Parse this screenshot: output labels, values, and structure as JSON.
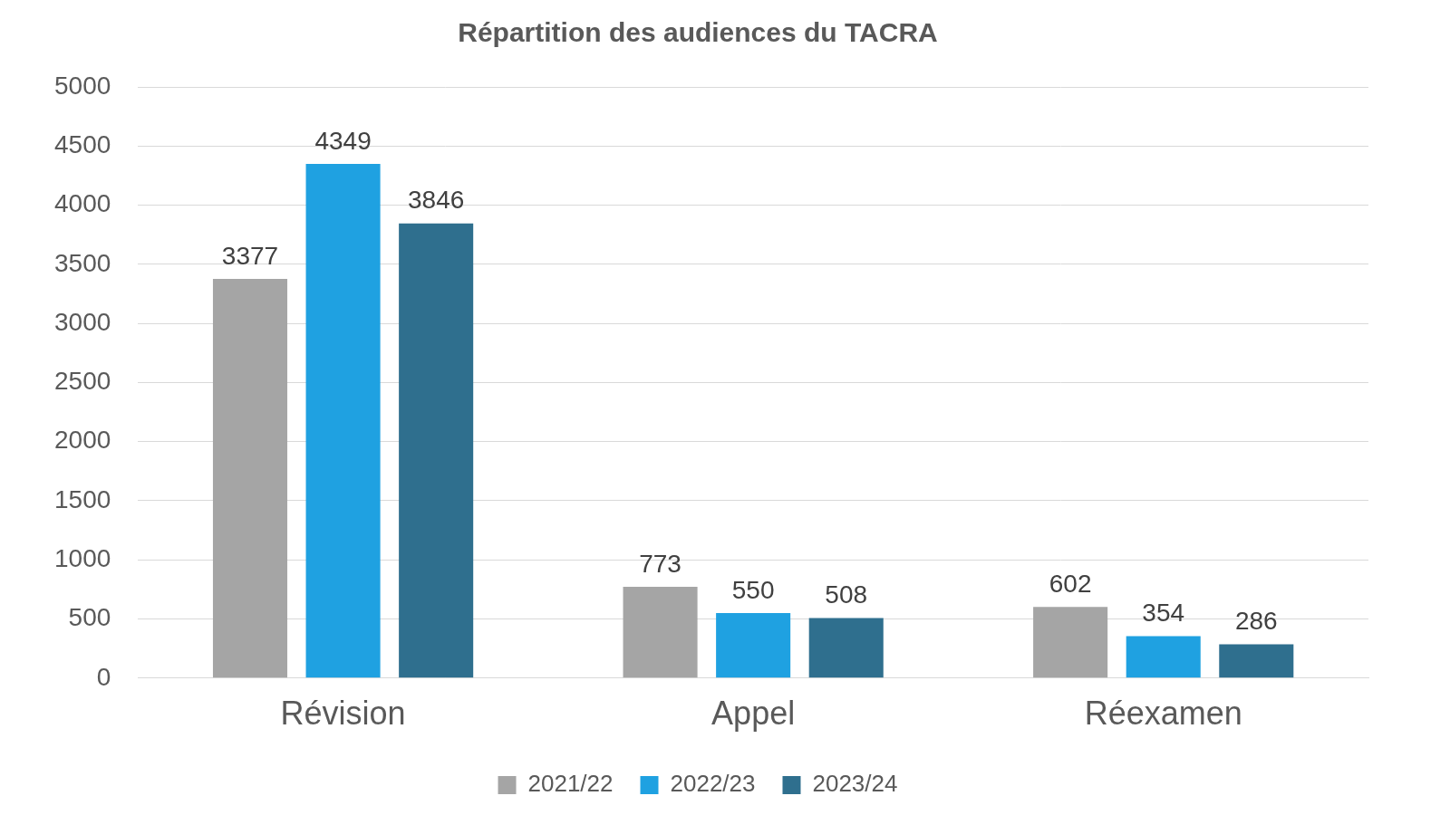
{
  "chart_data": {
    "type": "bar",
    "title": "Répartition des audiences du TACRA",
    "categories": [
      "Révision",
      "Appel",
      "Réexamen"
    ],
    "series": [
      {
        "name": "2021/22",
        "color": "#a5a5a5",
        "values": [
          3377,
          773,
          602
        ]
      },
      {
        "name": "2022/23",
        "color": "#1fa1e1",
        "values": [
          4349,
          550,
          354
        ]
      },
      {
        "name": "2023/24",
        "color": "#2f6f8e",
        "values": [
          3846,
          508,
          286
        ]
      }
    ],
    "ylim": [
      0,
      5000
    ],
    "yticks": [
      0,
      500,
      1000,
      1500,
      2000,
      2500,
      3000,
      3500,
      4000,
      4500,
      5000
    ],
    "grid": true,
    "legend": "bottom",
    "data_labels": true
  }
}
